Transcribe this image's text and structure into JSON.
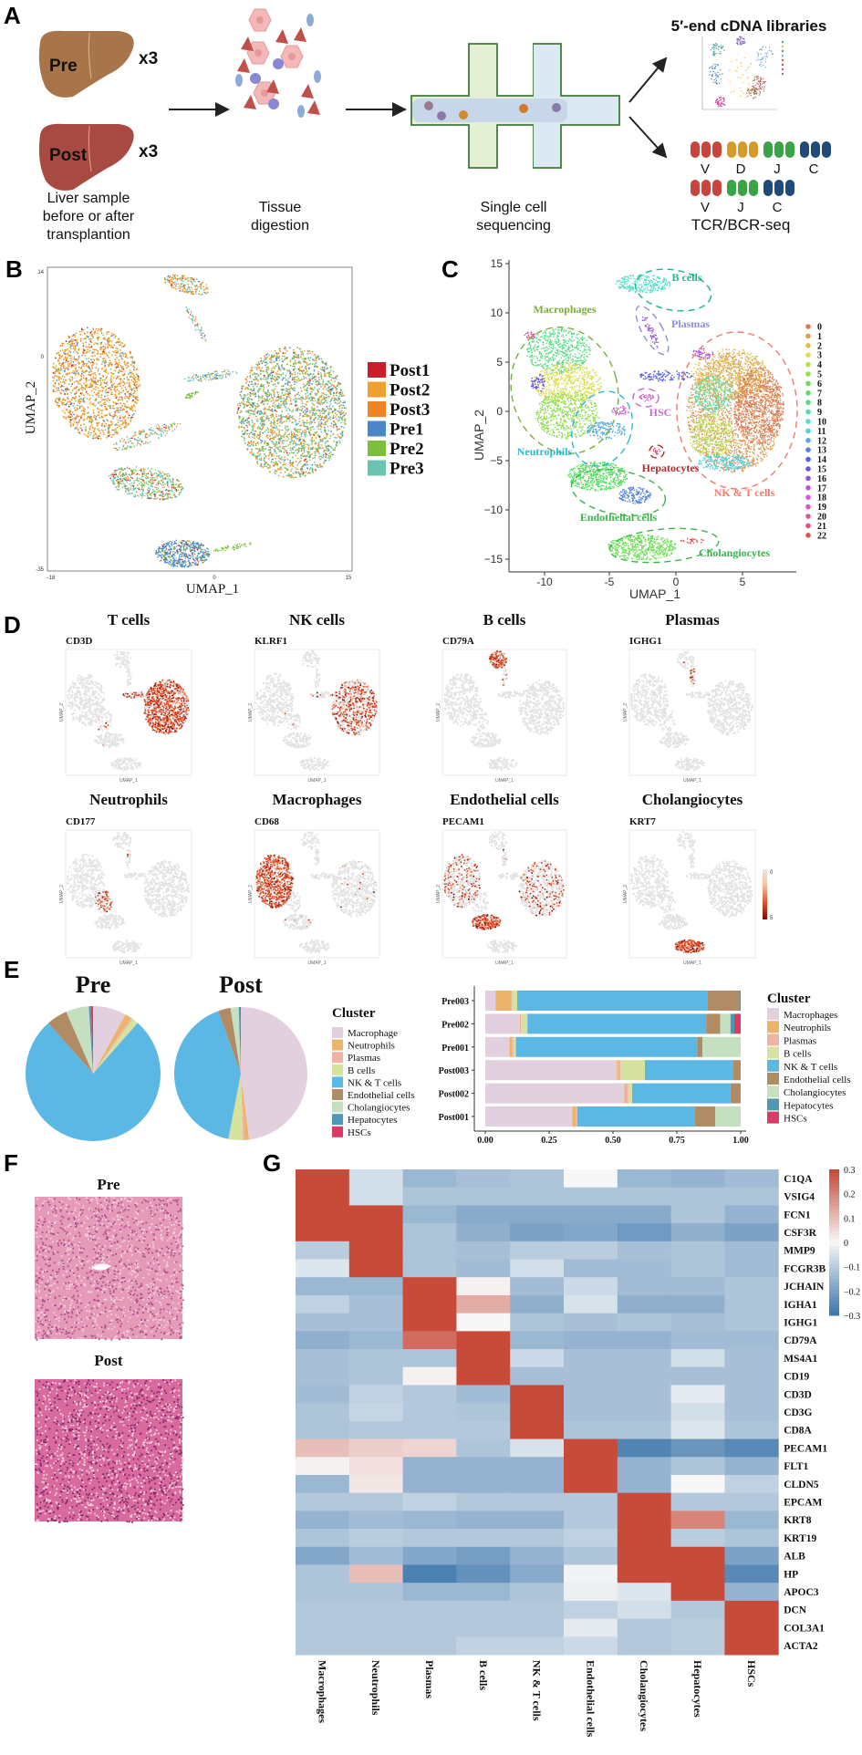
{
  "panels": {
    "a": "A",
    "b": "B",
    "c": "C",
    "d": "D",
    "e": "E",
    "f": "F",
    "g": "G"
  },
  "panel_a": {
    "pre_liver": "Pre",
    "post_liver": "Post",
    "pre_count": "x3",
    "post_count": "x3",
    "liver_caption": [
      "Liver sample",
      "before or after",
      "transplantion"
    ],
    "digestion_caption": [
      "Tissue",
      "digestion"
    ],
    "sequencing_caption": [
      "Single cell",
      "sequencing"
    ],
    "cdna_title": "5′-end cDNA libraries",
    "vdjc_labels": [
      "V",
      "D",
      "J",
      "C"
    ],
    "vjc_labels": [
      "V",
      "J",
      "C"
    ],
    "tcr_caption": "TCR/BCR-seq",
    "gene_segment_colors": {
      "V": "#c8453c",
      "D": "#d69a2a",
      "J": "#3aa346",
      "C": "#1f4a7a"
    }
  },
  "panel_b": {
    "xlabel": "UMAP_1",
    "ylabel": "UMAP_2",
    "xticks": [
      "-18",
      "0",
      "15"
    ],
    "yticks": [
      "14",
      "0",
      "-35"
    ],
    "legend": [
      {
        "label": "Post1",
        "color": "#c8202a"
      },
      {
        "label": "Post2",
        "color": "#f0a030"
      },
      {
        "label": "Post3",
        "color": "#f08424"
      },
      {
        "label": "Pre1",
        "color": "#4a86c8"
      },
      {
        "label": "Pre2",
        "color": "#7cbf3c"
      },
      {
        "label": "Pre3",
        "color": "#6cc4b0"
      }
    ]
  },
  "panel_c": {
    "xlabel": "UMAP_1",
    "ylabel": "UMAP_2",
    "xticks": [
      "-10",
      "-5",
      "0",
      "5"
    ],
    "yticks": [
      "15",
      "10",
      "5",
      "0",
      "−5",
      "−10",
      "−15"
    ],
    "cell_type_labels": [
      {
        "label": "B cells",
        "color": "#1bb58a"
      },
      {
        "label": "Macrophages",
        "color": "#7cae3a"
      },
      {
        "label": "Plasmas",
        "color": "#8e8ed6"
      },
      {
        "label": "HSC",
        "color": "#c26fc6"
      },
      {
        "label": "Neutrophils",
        "color": "#2bbad4"
      },
      {
        "label": "Hepatocytes",
        "color": "#b52a2a"
      },
      {
        "label": "NK & T cells",
        "color": "#f07a6a"
      },
      {
        "label": "Endothelial cells",
        "color": "#39b54a"
      },
      {
        "label": "Cholangiocytes",
        "color": "#39b54a"
      }
    ],
    "clusters": [
      "0",
      "1",
      "2",
      "3",
      "4",
      "5",
      "6",
      "7",
      "8",
      "9",
      "10",
      "11",
      "12",
      "13",
      "14",
      "15",
      "16",
      "17",
      "18",
      "19",
      "20",
      "21",
      "22"
    ]
  },
  "panel_d": {
    "features": [
      {
        "title": "T cells",
        "gene": "CD3D"
      },
      {
        "title": "NK cells",
        "gene": "KLRF1"
      },
      {
        "title": "B cells",
        "gene": "CD79A"
      },
      {
        "title": "Plasmas",
        "gene": "IGHG1"
      },
      {
        "title": "Neutrophils",
        "gene": "CD177"
      },
      {
        "title": "Macrophages",
        "gene": "CD68"
      },
      {
        "title": "Endothelial cells",
        "gene": "PECAM1"
      },
      {
        "title": "Cholangiocytes",
        "gene": "KRT7"
      }
    ],
    "xlabel": "UMAP_1",
    "ylabel": "UMAP_2",
    "colorbar": {
      "min": "0",
      "max": "5",
      "low_color": "#e6e6e6",
      "high_color": "#7a0a0a"
    }
  },
  "chart_data": [
    {
      "type": "pie",
      "title": "Pre",
      "legend_title": "Cluster",
      "categories": [
        "Macrophage",
        "Neutrophils",
        "Plasmas",
        "B cells",
        "NK & T cells",
        "Endothelial cells",
        "Cholangiocytes",
        "Hepatocytes",
        "HSCs"
      ],
      "values": [
        0.08,
        0.015,
        0.005,
        0.015,
        0.77,
        0.05,
        0.055,
        0.005,
        0.005
      ],
      "colors": [
        "#e2d0df",
        "#ecb46a",
        "#f0b3a3",
        "#d6e29d",
        "#5bb8e4",
        "#b08b64",
        "#c5e0c0",
        "#4f98b4",
        "#d83b63"
      ]
    },
    {
      "type": "pie",
      "title": "Post",
      "categories": [
        "Macrophage",
        "Neutrophils",
        "Plasmas",
        "B cells",
        "NK & T cells",
        "Endothelial cells",
        "Cholangiocytes",
        "Hepatocytes",
        "HSCs"
      ],
      "values": [
        0.48,
        0.01,
        0.005,
        0.035,
        0.415,
        0.03,
        0.02,
        0.003,
        0.002
      ],
      "colors": [
        "#e2d0df",
        "#ecb46a",
        "#f0b3a3",
        "#d6e29d",
        "#5bb8e4",
        "#b08b64",
        "#c5e0c0",
        "#4f98b4",
        "#d83b63"
      ]
    },
    {
      "type": "bar",
      "orientation": "horizontal-stacked",
      "legend_title": "Cluster",
      "legend": "right",
      "categories": [
        "Pre003",
        "Pre002",
        "Pre001",
        "Post003",
        "Post002",
        "Post001"
      ],
      "xticks": [
        "0.00",
        "0.25",
        "0.50",
        "0.75",
        "1.00"
      ],
      "xlim": [
        0,
        1
      ],
      "series": [
        {
          "name": "Macrophages",
          "color": "#e2d0df",
          "values": [
            0.04,
            0.135,
            0.095,
            0.515,
            0.545,
            0.34
          ]
        },
        {
          "name": "Neutrophils",
          "color": "#ecb46a",
          "values": [
            0.06,
            0.0,
            0.01,
            0.005,
            0.005,
            0.015
          ]
        },
        {
          "name": "Plasmas",
          "color": "#f0b3a3",
          "values": [
            0.005,
            0.005,
            0.005,
            0.01,
            0.01,
            0.005
          ]
        },
        {
          "name": "B cells",
          "color": "#d6e29d",
          "values": [
            0.02,
            0.025,
            0.01,
            0.095,
            0.015,
            0.0
          ]
        },
        {
          "name": "NK & T cells",
          "color": "#5bb8e4",
          "values": [
            0.745,
            0.7,
            0.71,
            0.345,
            0.385,
            0.46
          ]
        },
        {
          "name": "Endothelial cells",
          "color": "#b08b64",
          "values": [
            0.125,
            0.055,
            0.02,
            0.03,
            0.04,
            0.08
          ]
        },
        {
          "name": "Cholangiocytes",
          "color": "#c5e0c0",
          "values": [
            0.0,
            0.04,
            0.15,
            0.0,
            0.0,
            0.1
          ]
        },
        {
          "name": "Hepatocytes",
          "color": "#4f98b4",
          "values": [
            0.005,
            0.015,
            0.0,
            0.0,
            0.0,
            0.0
          ]
        },
        {
          "name": "HSCs",
          "color": "#d83b63",
          "values": [
            0.0,
            0.025,
            0.0,
            0.0,
            0.0,
            0.0
          ]
        }
      ]
    },
    {
      "type": "heatmap",
      "rows": [
        "C1QA",
        "VSIG4",
        "FCN1",
        "CSF3R",
        "MMP9",
        "FCGR3B",
        "JCHAIN",
        "IGHA1",
        "IGHG1",
        "CD79A",
        "MS4A1",
        "CD19",
        "CD3D",
        "CD3G",
        "CD8A",
        "PECAM1",
        "FLT1",
        "CLDN5",
        "EPCAM",
        "KRT8",
        "KRT19",
        "ALB",
        "HP",
        "APOC3",
        "DCN",
        "COL3A1",
        "ACTA2"
      ],
      "columns": [
        "Macrophages",
        "Neutrophils",
        "Plasmas",
        "B cells",
        "NK & T cells",
        "Endothelial cells",
        "Cholangiocytes",
        "Hepatocytes",
        "HSCs"
      ],
      "colorbar_ticks": [
        "0.3",
        "0.2",
        "0.1",
        "0",
        "−0.1",
        "−0.2",
        "−0.3"
      ],
      "zlim": [
        -0.3,
        0.3
      ],
      "colors": {
        "high": "#c84b3a",
        "mid": "#f7f7f7",
        "low": "#3f78ad"
      },
      "values": [
        [
          0.3,
          -0.06,
          -0.15,
          -0.13,
          -0.12,
          0.0,
          -0.15,
          -0.16,
          -0.14
        ],
        [
          0.3,
          -0.06,
          -0.12,
          -0.12,
          -0.12,
          -0.12,
          -0.12,
          -0.12,
          -0.12
        ],
        [
          0.3,
          0.3,
          -0.15,
          -0.18,
          -0.18,
          -0.18,
          -0.18,
          -0.12,
          -0.16
        ],
        [
          0.3,
          0.3,
          -0.12,
          -0.17,
          -0.2,
          -0.19,
          -0.22,
          -0.17,
          -0.2
        ],
        [
          -0.1,
          0.3,
          -0.12,
          -0.13,
          -0.1,
          -0.1,
          -0.13,
          -0.12,
          -0.14
        ],
        [
          -0.04,
          0.3,
          -0.12,
          -0.14,
          -0.06,
          -0.14,
          -0.14,
          -0.12,
          -0.14
        ],
        [
          -0.15,
          -0.15,
          0.3,
          0.01,
          -0.14,
          -0.07,
          -0.14,
          -0.14,
          -0.12
        ],
        [
          -0.09,
          -0.13,
          0.3,
          0.13,
          -0.17,
          -0.05,
          -0.17,
          -0.17,
          -0.12
        ],
        [
          -0.13,
          -0.13,
          0.3,
          0.0,
          -0.12,
          -0.13,
          -0.12,
          -0.13,
          -0.12
        ],
        [
          -0.17,
          -0.15,
          0.24,
          0.3,
          -0.15,
          -0.16,
          -0.16,
          -0.14,
          -0.14
        ],
        [
          -0.13,
          -0.12,
          -0.12,
          0.3,
          -0.07,
          -0.13,
          -0.13,
          -0.06,
          -0.13
        ],
        [
          -0.13,
          -0.12,
          0.01,
          0.3,
          -0.13,
          -0.13,
          -0.13,
          -0.13,
          -0.13
        ],
        [
          -0.14,
          -0.09,
          -0.11,
          -0.14,
          0.3,
          -0.13,
          -0.13,
          -0.03,
          -0.13
        ],
        [
          -0.12,
          -0.08,
          -0.11,
          -0.12,
          0.3,
          -0.13,
          -0.13,
          -0.06,
          -0.13
        ],
        [
          -0.12,
          -0.11,
          -0.11,
          -0.11,
          0.3,
          -0.12,
          -0.12,
          -0.04,
          -0.12
        ],
        [
          0.1,
          0.07,
          0.06,
          -0.12,
          -0.05,
          0.3,
          -0.27,
          -0.23,
          -0.26
        ],
        [
          0.01,
          0.04,
          -0.16,
          -0.16,
          -0.16,
          0.3,
          -0.16,
          -0.12,
          -0.16
        ],
        [
          -0.15,
          0.03,
          -0.16,
          -0.16,
          -0.16,
          0.3,
          -0.16,
          0.0,
          -0.09
        ],
        [
          -0.11,
          -0.11,
          -0.09,
          -0.11,
          -0.11,
          -0.11,
          0.3,
          -0.11,
          -0.11
        ],
        [
          -0.16,
          -0.14,
          -0.15,
          -0.16,
          -0.16,
          -0.11,
          0.3,
          0.2,
          -0.15
        ],
        [
          -0.12,
          -0.1,
          -0.11,
          -0.11,
          -0.11,
          -0.09,
          0.3,
          -0.1,
          -0.12
        ],
        [
          -0.19,
          -0.14,
          -0.19,
          -0.21,
          -0.16,
          -0.12,
          0.3,
          0.3,
          -0.2
        ],
        [
          -0.12,
          0.1,
          -0.28,
          -0.24,
          -0.18,
          -0.01,
          0.3,
          0.3,
          -0.26
        ],
        [
          -0.12,
          -0.12,
          -0.15,
          -0.15,
          -0.12,
          -0.02,
          -0.04,
          0.3,
          -0.16
        ],
        [
          -0.11,
          -0.11,
          -0.11,
          -0.11,
          -0.11,
          -0.09,
          -0.06,
          -0.11,
          0.3
        ],
        [
          -0.11,
          -0.11,
          -0.11,
          -0.11,
          -0.11,
          -0.03,
          -0.11,
          -0.1,
          0.3
        ],
        [
          -0.11,
          -0.11,
          -0.11,
          -0.09,
          -0.09,
          -0.07,
          -0.11,
          -0.1,
          0.3
        ]
      ]
    }
  ],
  "panel_e": {
    "pie_titles": [
      "Pre",
      "Post"
    ],
    "legend_title": "Cluster",
    "bar_legend_title": "Cluster"
  },
  "panel_f": {
    "pre_title": "Pre",
    "post_title": "Post"
  }
}
